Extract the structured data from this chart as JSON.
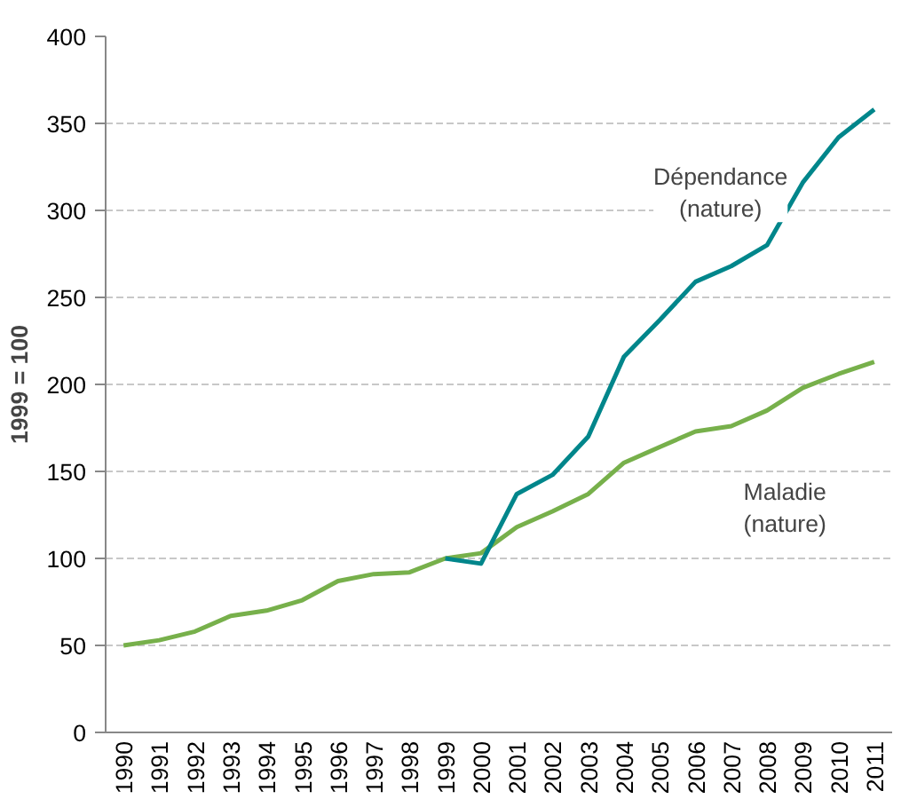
{
  "chart_data": {
    "type": "line",
    "ylabel": "1999 = 100",
    "categories": [
      "1990",
      "1991",
      "1992",
      "1993",
      "1994",
      "1995",
      "1996",
      "1997",
      "1998",
      "1999",
      "2000",
      "2001",
      "2002",
      "2003",
      "2004",
      "2005",
      "2006",
      "2007",
      "2008",
      "2009",
      "2010",
      "2011"
    ],
    "series": [
      {
        "name": "Maladie (nature)",
        "color": "#77b04b",
        "values": [
          50,
          53,
          58,
          67,
          70,
          76,
          87,
          91,
          92,
          100,
          103,
          118,
          127,
          137,
          155,
          164,
          173,
          176,
          185,
          198,
          206,
          213
        ]
      },
      {
        "name": "Dépendance (nature)",
        "color": "#00868b",
        "values": [
          null,
          null,
          null,
          null,
          null,
          null,
          null,
          null,
          null,
          100,
          97,
          137,
          148,
          170,
          216,
          237,
          259,
          268,
          280,
          316,
          342,
          358
        ]
      }
    ],
    "ylim": [
      0,
      400
    ],
    "yticks": [
      0,
      50,
      100,
      150,
      200,
      250,
      300,
      350,
      400
    ],
    "grid": "y",
    "line_style": "solid",
    "marker": "none"
  }
}
